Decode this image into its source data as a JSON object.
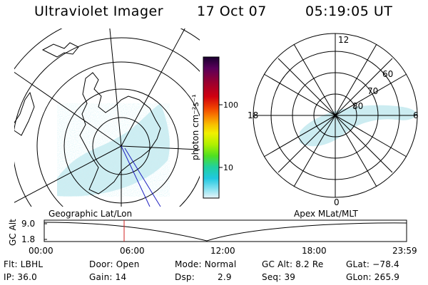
{
  "header": {
    "title": "Ultraviolet Imager",
    "date": "17 Oct 07",
    "time": "05:19:05 UT"
  },
  "colorbar": {
    "label": "photon cm⁻²s⁻¹",
    "ticks": [
      "100",
      "10"
    ],
    "colors": [
      "#1a0030",
      "#5a005a",
      "#9a0030",
      "#d00010",
      "#f04000",
      "#f88000",
      "#f8c000",
      "#f0f000",
      "#b0f000",
      "#50e020",
      "#20d0a0",
      "#20c8e0",
      "#80e0f0",
      "#e8f4f8"
    ]
  },
  "left_panel": {
    "label": "Geographic Lat/Lon"
  },
  "right_panel": {
    "label": "Apex MLat/MLT",
    "mlt_labels": [
      "12",
      "18",
      "6",
      "0"
    ],
    "lat_labels": [
      "60",
      "70",
      "80"
    ]
  },
  "timeline": {
    "axis_label": "GC Alt",
    "y_ticks": [
      "9.0",
      "1.8"
    ],
    "x_ticks": [
      "00:00",
      "06:00",
      "12:00",
      "18:00",
      "23:59"
    ],
    "marker_color": "#d02020"
  },
  "info": {
    "flt": "Flt: LBHL",
    "ip": "IP: 36.0",
    "door": "Door: Open",
    "gain": "Gain: 14",
    "mode": "Mode: Normal",
    "dsp_label": "Dsp:",
    "dsp_value": "2.9",
    "gc_alt": "GC Alt: 8.2 Re",
    "seq": "Seq: 39",
    "glat": "GLat: −78.4",
    "glon": "GLon: 265.9"
  }
}
